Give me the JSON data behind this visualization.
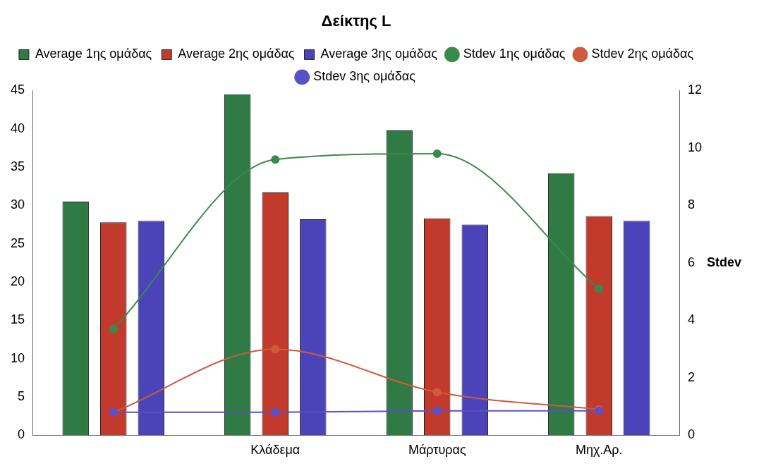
{
  "chart_data": {
    "type": "bar",
    "title": "Δείκτης L",
    "y2label": "Stdev",
    "categories": [
      null,
      "Κλάδεμα",
      "Μάρτυρας",
      "Μηχ.Αρ."
    ],
    "series": [
      {
        "name": "Average 1ης ομάδας",
        "color": "#2f7a45",
        "values": [
          30.5,
          44.5,
          39.8,
          34.2
        ]
      },
      {
        "name": "Average 2ης ομάδας",
        "color": "#c23a2c",
        "values": [
          27.8,
          31.7,
          28.3,
          28.6
        ]
      },
      {
        "name": "Average 3ης ομάδας",
        "color": "#4a44b8",
        "values": [
          28,
          28.2,
          27.5,
          28
        ]
      },
      {
        "name": "Stdev 1ης ομάδας",
        "type": "line",
        "axis": "y2",
        "color": "#3a8a4a",
        "values": [
          3.7,
          9.6,
          9.8,
          5.1
        ]
      },
      {
        "name": "Stdev 2ης ομάδας",
        "type": "line",
        "axis": "y2",
        "color": "#d05a40",
        "values": [
          0.8,
          3.0,
          1.5,
          0.9
        ]
      },
      {
        "name": "Stdev 3ης ομάδας",
        "type": "line",
        "axis": "y2",
        "color": "#5a50c8",
        "values": [
          0.8,
          0.8,
          0.85,
          0.85
        ]
      }
    ],
    "ylim": [
      0,
      45
    ],
    "yticks": [
      0,
      5,
      10,
      15,
      20,
      25,
      30,
      35,
      40,
      45
    ],
    "y2lim": [
      0,
      12
    ],
    "y2ticks": [
      0,
      2,
      4,
      6,
      8,
      10,
      12
    ],
    "grid": false,
    "legend": "top",
    "marker": "circle"
  }
}
